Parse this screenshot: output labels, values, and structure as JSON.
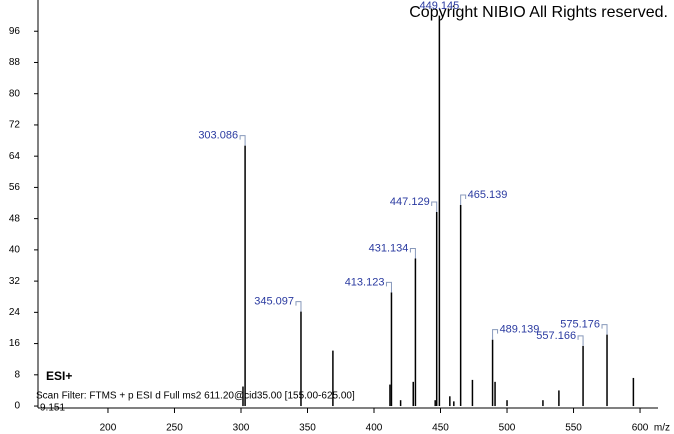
{
  "chart_data": {
    "type": "spectrum",
    "copyright": "Copyright NIBIO All Rights reserved.",
    "ionization": "ESI+",
    "scan_filter": "Scan Filter: FTMS + p ESI d Full ms2 611.20@cid35.00 [155.00-625.00]",
    "retention_time": "9.151",
    "xlabel": "m/z",
    "xlim": [
      147.4,
      613.5
    ],
    "xticks": [
      200,
      250,
      300,
      350,
      400,
      450,
      500,
      550,
      600
    ],
    "ylim": [
      -0.5,
      104
    ],
    "yticks": [
      0,
      8,
      16,
      24,
      32,
      40,
      48,
      56,
      64,
      72,
      80,
      88,
      96
    ],
    "color": "#000000",
    "label_color": "#2a3aa0",
    "peaks": {
      "x": [
        303.086,
        345.097,
        413.123,
        431.134,
        447.129,
        449.145,
        465.139,
        489.139,
        557.166,
        575.176
      ],
      "values": [
        66.7,
        24.2,
        29.1,
        37.8,
        49.7,
        100,
        51.5,
        17,
        15.4,
        18.3
      ]
    },
    "minor_peaks": {
      "x": [
        301.5,
        369.1,
        412.0,
        429.5,
        446.0,
        474.0,
        491.0,
        539.0,
        595.0,
        420.0,
        457.0,
        460.0,
        500.0,
        527.0
      ],
      "values": [
        5,
        14.2,
        5.5,
        6.2,
        1.5,
        6.7,
        6.2,
        4,
        7.2,
        1.5,
        2.5,
        1.2,
        1.5,
        1.5
      ]
    }
  }
}
